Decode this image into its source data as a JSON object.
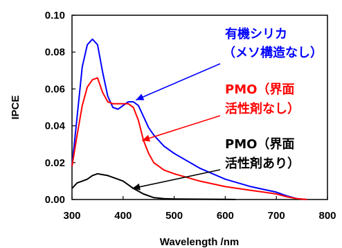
{
  "chart_data": {
    "type": "line",
    "xlabel": "Wavelength /nm",
    "ylabel": "IPCE",
    "xlim": [
      300,
      800
    ],
    "ylim": [
      0,
      0.1
    ],
    "xticks": [
      "300",
      "400",
      "500",
      "600",
      "700",
      "800"
    ],
    "yticks": [
      "0.00",
      "0.02",
      "0.04",
      "0.06",
      "0.08",
      "0.10"
    ],
    "grid": false,
    "legend": "none",
    "series": [
      {
        "color": "#0000ff",
        "x": [
          300,
          310,
          320,
          330,
          340,
          350,
          360,
          370,
          380,
          390,
          400,
          410,
          420,
          430,
          440,
          450,
          460,
          480,
          500,
          550,
          600,
          650,
          700,
          720,
          740,
          760
        ],
        "y": [
          0.018,
          0.045,
          0.072,
          0.084,
          0.087,
          0.084,
          0.069,
          0.056,
          0.05,
          0.049,
          0.051,
          0.053,
          0.053,
          0.051,
          0.045,
          0.039,
          0.035,
          0.029,
          0.025,
          0.017,
          0.011,
          0.007,
          0.004,
          0.002,
          0.0005,
          0.0
        ]
      },
      {
        "color": "#ff0000",
        "x": [
          300,
          310,
          320,
          330,
          340,
          350,
          360,
          370,
          380,
          390,
          400,
          410,
          420,
          430,
          440,
          450,
          460,
          480,
          500,
          550,
          600,
          650,
          700,
          720,
          740,
          760
        ],
        "y": [
          0.018,
          0.035,
          0.051,
          0.061,
          0.065,
          0.066,
          0.058,
          0.053,
          0.052,
          0.052,
          0.052,
          0.052,
          0.05,
          0.043,
          0.032,
          0.025,
          0.02,
          0.016,
          0.014,
          0.01,
          0.007,
          0.005,
          0.003,
          0.0015,
          0.0005,
          0.0
        ]
      },
      {
        "color": "#000000",
        "x": [
          300,
          310,
          320,
          330,
          340,
          350,
          360,
          370,
          380,
          390,
          400,
          410,
          420,
          440,
          460,
          480,
          500,
          550,
          600,
          620
        ],
        "y": [
          0.006,
          0.009,
          0.01,
          0.011,
          0.013,
          0.014,
          0.0135,
          0.013,
          0.012,
          0.011,
          0.01,
          0.008,
          0.006,
          0.003,
          0.001,
          0.0005,
          0.0003,
          0.0002,
          0.0001,
          0.0
        ]
      }
    ],
    "annotations": [
      {
        "lines": [
          "有機シリカ",
          "（メソ構造なし）"
        ],
        "color": "#0000ff",
        "arrow_to": [
          425,
          0.054
        ]
      },
      {
        "lines": [
          "PMO（界面",
          "活性剤なし）"
        ],
        "color": "#ff0000",
        "arrow_to": [
          437,
          0.032
        ]
      },
      {
        "lines": [
          "PMO（界面",
          "活性剤あり）"
        ],
        "color": "#000000",
        "arrow_to": [
          418,
          0.006
        ]
      }
    ]
  }
}
